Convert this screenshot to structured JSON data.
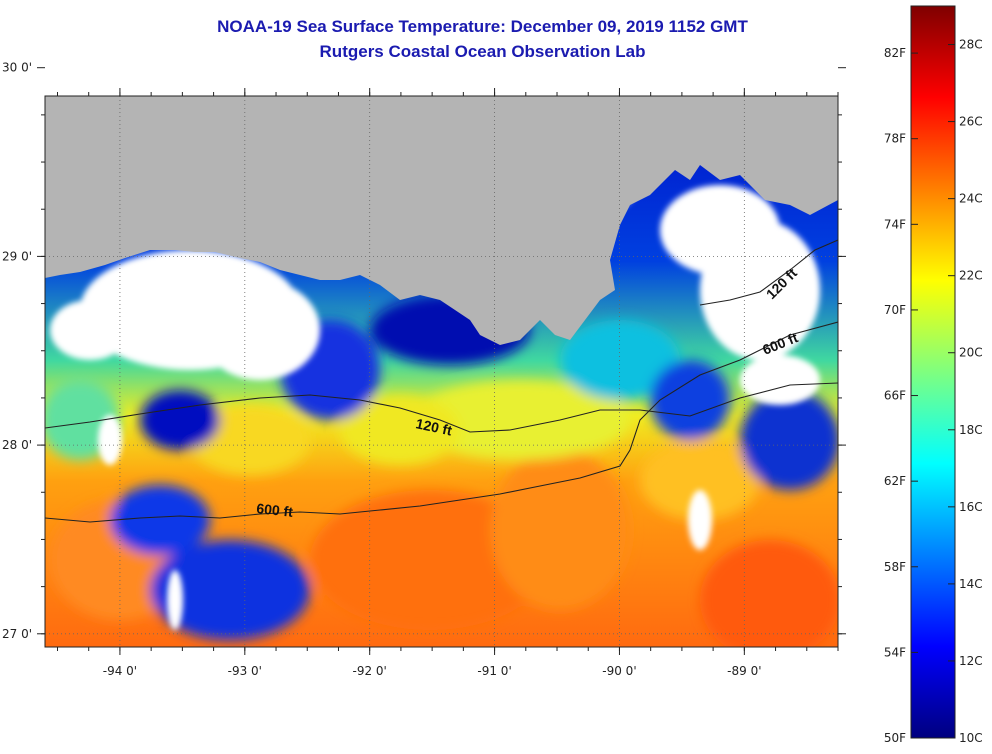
{
  "header": {
    "title": "NOAA-19 Sea Surface Temperature:  December 09, 2019 1152 GMT",
    "subtitle": "Rutgers Coastal Ocean Observation Lab"
  },
  "map": {
    "lon_range": [
      -94.6,
      -88.25
    ],
    "lat_range": [
      26.93,
      29.85
    ],
    "lat_ticks": [
      {
        "value": 30,
        "label": "30 0'"
      },
      {
        "value": 29,
        "label": "29 0'"
      },
      {
        "value": 28,
        "label": "28 0'"
      },
      {
        "value": 27,
        "label": "27 0'"
      }
    ],
    "lon_ticks": [
      {
        "value": -94,
        "label": "-94 0'"
      },
      {
        "value": -93,
        "label": "-93 0'"
      },
      {
        "value": -92,
        "label": "-92 0'"
      },
      {
        "value": -91,
        "label": "-91 0'"
      },
      {
        "value": -90,
        "label": "-90 0'"
      },
      {
        "value": -89,
        "label": "-89 0'"
      }
    ],
    "land_color": "#b4b4b4",
    "cloud_color": "#ffffff",
    "depth_labels": [
      {
        "text": "120 ft"
      },
      {
        "text": "600 ft"
      },
      {
        "text": "120 ft"
      },
      {
        "text": "600 ft"
      }
    ]
  },
  "colorbar": {
    "fahrenheit_labels": [
      "82F",
      "78F",
      "74F",
      "70F",
      "66F",
      "62F",
      "58F",
      "54F",
      "50F"
    ],
    "celsius_labels": [
      "28C",
      "26C",
      "24C",
      "22C",
      "20C",
      "18C",
      "16C",
      "14C",
      "12C",
      "10C"
    ],
    "min_c": 10,
    "max_c": 29,
    "colors": [
      "#00007f",
      "#0000ff",
      "#007fff",
      "#00ffff",
      "#7fff7f",
      "#ffff00",
      "#ff7f00",
      "#ff0000",
      "#7f0000"
    ]
  }
}
